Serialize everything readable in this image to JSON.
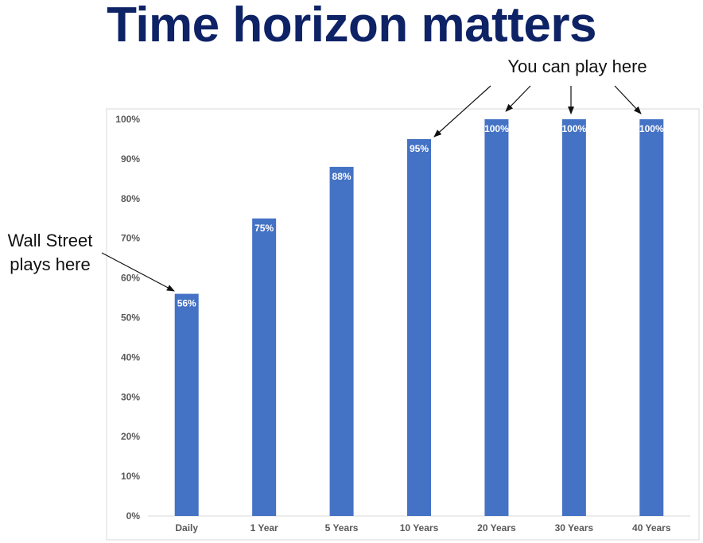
{
  "title": "Time horizon matters",
  "annotations": {
    "right": "You can play here",
    "left_line1": "Wall Street",
    "left_line2": "plays here"
  },
  "colors": {
    "bar": "#4472c4",
    "title": "#0e2266",
    "frame": "#d9d9d9",
    "axis": "#d9d9d9"
  },
  "chart_data": {
    "type": "bar",
    "categories": [
      "Daily",
      "1 Year",
      "5 Years",
      "10 Years",
      "20 Years",
      "30 Years",
      "40 Years"
    ],
    "values": [
      56,
      75,
      88,
      95,
      100,
      100,
      100
    ],
    "data_labels": [
      "56%",
      "75%",
      "88%",
      "95%",
      "100%",
      "100%",
      "100%"
    ],
    "y_ticks": [
      "0%",
      "10%",
      "20%",
      "30%",
      "40%",
      "50%",
      "60%",
      "70%",
      "80%",
      "90%",
      "100%"
    ],
    "ylim": [
      0,
      100
    ],
    "grid": false,
    "legend": "none"
  }
}
